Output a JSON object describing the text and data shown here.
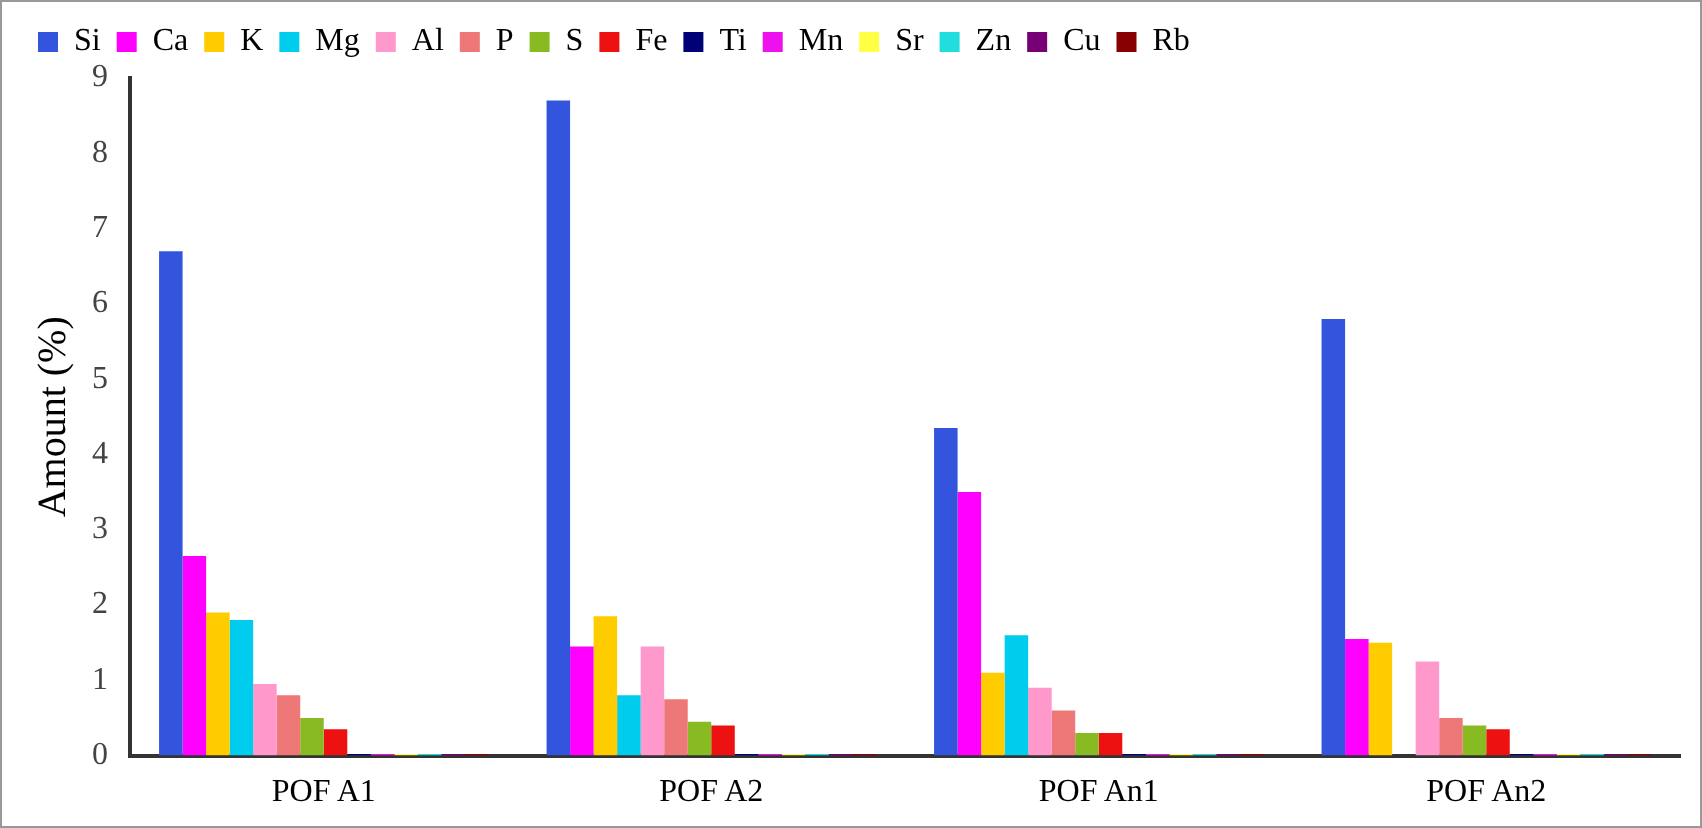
{
  "chart_data": {
    "type": "bar",
    "ylabel": "Amount (%)",
    "categories": [
      "POF A1",
      "POF A2",
      "POF An1",
      "POF An2"
    ],
    "series": [
      {
        "name": "Si",
        "color": "#3355dd",
        "values": [
          6.7,
          8.7,
          4.35,
          5.8
        ]
      },
      {
        "name": "Ca",
        "color": "#ff00ff",
        "values": [
          2.65,
          1.45,
          3.5,
          1.55
        ]
      },
      {
        "name": "K",
        "color": "#ffcc00",
        "values": [
          1.9,
          1.85,
          1.1,
          1.5
        ]
      },
      {
        "name": "Mg",
        "color": "#00ccee",
        "values": [
          1.8,
          0.8,
          1.6,
          0
        ]
      },
      {
        "name": "Al",
        "color": "#ff99cc",
        "values": [
          0.95,
          1.45,
          0.9,
          1.25
        ]
      },
      {
        "name": "P",
        "color": "#ee7777",
        "values": [
          0.8,
          0.75,
          0.6,
          0.5
        ]
      },
      {
        "name": "S",
        "color": "#88bb22",
        "values": [
          0.5,
          0.45,
          0.3,
          0.4
        ]
      },
      {
        "name": "Fe",
        "color": "#ee1111",
        "values": [
          0.35,
          0.4,
          0.3,
          0.35
        ]
      },
      {
        "name": "Ti",
        "color": "#000077",
        "values": [
          0.02,
          0.02,
          0.02,
          0.02
        ]
      },
      {
        "name": "Mn",
        "color": "#ee11ee",
        "values": [
          0.02,
          0.02,
          0.02,
          0.02
        ]
      },
      {
        "name": "Sr",
        "color": "#ffff44",
        "values": [
          0.02,
          0.02,
          0.02,
          0.02
        ]
      },
      {
        "name": "Zn",
        "color": "#22dddd",
        "values": [
          0.02,
          0.02,
          0.02,
          0.02
        ]
      },
      {
        "name": "Cu",
        "color": "#770077",
        "values": [
          0.02,
          0.02,
          0.02,
          0.02
        ]
      },
      {
        "name": "Rb",
        "color": "#880000",
        "values": [
          0.02,
          0.02,
          0.02,
          0.02
        ]
      }
    ],
    "ylim": [
      0,
      9
    ],
    "yticks": [
      0,
      1,
      2,
      3,
      4,
      5,
      6,
      7,
      8,
      9
    ],
    "grid": false,
    "legend": "top"
  }
}
